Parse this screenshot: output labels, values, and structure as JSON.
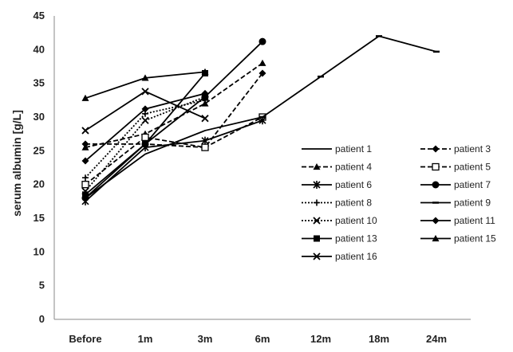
{
  "chart_data": {
    "type": "line",
    "title": "",
    "xlabel": "",
    "ylabel": "serum albumin [g/L]",
    "ylim": [
      0,
      45
    ],
    "yticks": [
      0,
      5,
      10,
      15,
      20,
      25,
      30,
      35,
      40,
      45
    ],
    "categories": [
      "Before",
      "1m",
      "3m",
      "6m",
      "12m",
      "18m",
      "24m"
    ],
    "grid": false,
    "legend_position": "lower-right",
    "series": [
      {
        "name": "patient 1",
        "values": [
          18,
          24.5,
          28,
          30,
          null,
          null,
          null
        ],
        "dash": "solid",
        "marker": "none"
      },
      {
        "name": "patient 3",
        "values": [
          26,
          26,
          25.5,
          36.5,
          null,
          null,
          null
        ],
        "dash": "dashed",
        "marker": "diamond"
      },
      {
        "name": "patient 4",
        "values": [
          25.5,
          27.5,
          32,
          38,
          null,
          null,
          null
        ],
        "dash": "dashed",
        "marker": "triangle"
      },
      {
        "name": "patient 5",
        "values": [
          20,
          27,
          25.5,
          30,
          null,
          null,
          null
        ],
        "dash": "dashed",
        "marker": "square-open"
      },
      {
        "name": "patient 6",
        "values": [
          17.5,
          25.5,
          26.5,
          29.5,
          null,
          null,
          null
        ],
        "dash": "solid",
        "marker": "star"
      },
      {
        "name": "patient 7",
        "values": [
          18,
          26,
          33,
          41.2,
          null,
          null,
          null
        ],
        "dash": "solid",
        "marker": "circle"
      },
      {
        "name": "patient 8",
        "values": [
          21,
          30.5,
          32.5,
          null,
          null,
          null,
          null
        ],
        "dash": "dotted",
        "marker": "plus"
      },
      {
        "name": "patient 9",
        "values": [
          null,
          null,
          null,
          30,
          36,
          42,
          39.7
        ],
        "dash": "solid",
        "marker": "dash"
      },
      {
        "name": "patient 10",
        "values": [
          19,
          29.5,
          33,
          null,
          null,
          null,
          null
        ],
        "dash": "dotted",
        "marker": "x"
      },
      {
        "name": "patient 11",
        "values": [
          23.5,
          31.2,
          33.5,
          null,
          null,
          null,
          null
        ],
        "dash": "solid",
        "marker": "diamond"
      },
      {
        "name": "patient 13",
        "values": [
          18.5,
          26,
          36.5,
          null,
          null,
          null,
          null
        ],
        "dash": "solid",
        "marker": "square"
      },
      {
        "name": "patient 15",
        "values": [
          32.8,
          35.8,
          36.7,
          null,
          null,
          null,
          null
        ],
        "dash": "solid",
        "marker": "triangle"
      },
      {
        "name": "patient 16",
        "values": [
          28,
          33.8,
          29.8,
          null,
          null,
          null,
          null
        ],
        "dash": "solid",
        "marker": "x"
      }
    ]
  }
}
